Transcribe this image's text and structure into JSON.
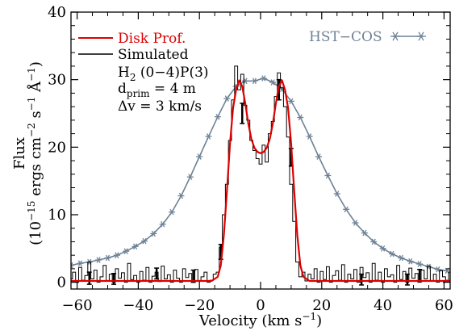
{
  "chart_data": {
    "type": "line",
    "title": "",
    "xlabel": {
      "main": "Velocity (km s",
      "sup": "−1",
      "close": ")"
    },
    "ylabel": {
      "line1": "Flux",
      "line2_parts": [
        {
          "t": "(10"
        },
        {
          "t": "−15",
          "sup": true
        },
        {
          "t": " ergs cm"
        },
        {
          "t": "−2",
          "sup": true
        },
        {
          "t": " s"
        },
        {
          "t": "−1",
          "sup": true
        },
        {
          "t": " Å"
        },
        {
          "t": "−1",
          "sup": true
        },
        {
          "t": ")"
        }
      ]
    },
    "xlim": [
      -62,
      62
    ],
    "ylim": [
      -1,
      40
    ],
    "xticks": [
      -60,
      -40,
      -20,
      0,
      20,
      40,
      60
    ],
    "yticks": [
      0,
      10,
      20,
      30,
      40
    ],
    "xtick_labels": [
      "−60",
      "−40",
      "−20",
      "0",
      "20",
      "40",
      "60"
    ],
    "ytick_labels": [
      "0",
      "10",
      "20",
      "30",
      "40"
    ],
    "legend": {
      "disk": "Disk Prof.",
      "sim": "Simulated",
      "hst": "HST−COS",
      "line3": {
        "a": "H",
        "sub": "2",
        "b": " (0−4)P(3)"
      },
      "line4": {
        "a": "d",
        "sub": "prim",
        "b": " = 4 m"
      },
      "line5": "Δv = 3 km/s"
    },
    "series": [
      {
        "name": "HST−COS",
        "color": "#6e8296",
        "marker": "asterisk",
        "x": [
          -62,
          -59,
          -56,
          -53,
          -50,
          -47,
          -44,
          -41,
          -38,
          -35,
          -32,
          -29,
          -26,
          -23,
          -20,
          -17,
          -14,
          -11,
          -8,
          -5,
          -2,
          1,
          4,
          7,
          10,
          13,
          16,
          19,
          22,
          25,
          28,
          31,
          34,
          37,
          40,
          43,
          46,
          49,
          52,
          55,
          58,
          61
        ],
        "y": [
          2.5,
          2.8,
          3.0,
          3.3,
          3.6,
          4.0,
          4.6,
          5.3,
          6.1,
          7.2,
          8.6,
          10.4,
          12.8,
          15.6,
          18.6,
          21.6,
          24.5,
          27.2,
          29.0,
          29.8,
          29.8,
          30.2,
          29.6,
          28.6,
          26.8,
          24.4,
          21.6,
          18.6,
          15.8,
          13.1,
          10.8,
          8.8,
          7.3,
          6.0,
          5.0,
          4.2,
          3.6,
          3.1,
          2.7,
          2.3,
          1.9,
          1.7
        ]
      },
      {
        "name": "Disk Prof.",
        "color": "#dd0000",
        "x": [
          -62,
          -16,
          -14,
          -13,
          -12,
          -11,
          -10,
          -9,
          -8,
          -7,
          -6,
          -5,
          -4,
          -3,
          -2,
          -1,
          0,
          1,
          2,
          3,
          4,
          5,
          6,
          7,
          8,
          9,
          10,
          11,
          12,
          13,
          14,
          16,
          62
        ],
        "y": [
          0.2,
          0.2,
          0.8,
          2.5,
          7.0,
          13.5,
          20.5,
          25.8,
          28.5,
          29.9,
          29.0,
          26.5,
          23.5,
          21.2,
          19.9,
          19.3,
          19.1,
          19.3,
          19.9,
          21.2,
          23.5,
          26.5,
          29.0,
          29.9,
          28.5,
          25.8,
          20.5,
          13.5,
          7.0,
          2.5,
          0.8,
          0.2,
          0.2
        ]
      },
      {
        "name": "Simulated",
        "color": "#000000",
        "x": [
          -62,
          -61,
          -60,
          -59,
          -58,
          -57,
          -56,
          -55,
          -54,
          -53,
          -52,
          -51,
          -50,
          -49,
          -48,
          -47,
          -46,
          -45,
          -44,
          -43,
          -42,
          -41,
          -40,
          -39,
          -38,
          -37,
          -36,
          -35,
          -34,
          -33,
          -32,
          -31,
          -30,
          -29,
          -28,
          -27,
          -26,
          -25,
          -24,
          -23,
          -22,
          -21,
          -20,
          -19,
          -18,
          -17,
          -16,
          -15,
          -14,
          -13,
          -12,
          -11,
          -10,
          -9,
          -8,
          -7,
          -6,
          -5,
          -4,
          -3,
          -2,
          -1,
          0,
          1,
          2,
          3,
          4,
          5,
          6,
          7,
          8,
          9,
          10,
          11,
          12,
          13,
          14,
          15,
          16,
          17,
          18,
          19,
          20,
          21,
          22,
          23,
          24,
          25,
          26,
          27,
          28,
          29,
          30,
          31,
          32,
          33,
          34,
          35,
          36,
          37,
          38,
          39,
          40,
          41,
          42,
          43,
          44,
          45,
          46,
          47,
          48,
          49,
          50,
          51,
          52,
          53,
          54,
          55,
          56,
          57,
          58,
          59,
          60,
          61,
          62
        ],
        "y": [
          0.5,
          1.5,
          0.0,
          2.2,
          0.3,
          1.0,
          3.0,
          0.5,
          1.8,
          0.0,
          0.8,
          2.5,
          0.2,
          1.2,
          0.0,
          2.0,
          0.6,
          1.4,
          0.0,
          2.8,
          0.4,
          1.0,
          0.0,
          1.6,
          0.3,
          2.2,
          0.0,
          0.9,
          1.5,
          0.1,
          2.4,
          0.5,
          1.1,
          0.0,
          1.8,
          0.6,
          0.0,
          2.0,
          0.7,
          1.3,
          0.0,
          1.9,
          0.2,
          0.8,
          1.5,
          0.0,
          0.3,
          1.2,
          1.5,
          5.2,
          10.0,
          14.5,
          21.0,
          27.0,
          32.0,
          28.5,
          30.8,
          26.2,
          24.0,
          21.0,
          19.5,
          18.3,
          17.5,
          20.3,
          17.8,
          22.0,
          23.8,
          27.5,
          31.0,
          28.8,
          26.0,
          21.5,
          14.5,
          9.0,
          3.0,
          0.8,
          1.5,
          0.2,
          1.2,
          0.5,
          2.0,
          0.0,
          1.6,
          0.4,
          2.3,
          0.0,
          1.0,
          1.7,
          0.3,
          2.6,
          0.0,
          1.2,
          0.5,
          1.9,
          0.0,
          2.2,
          0.7,
          1.4,
          0.0,
          2.8,
          0.3,
          1.5,
          0.0,
          2.0,
          0.8,
          1.1,
          0.0,
          2.5,
          0.4,
          1.6,
          0.0,
          2.1,
          0.6,
          1.3,
          0.0,
          1.8,
          0.5,
          2.4,
          0.2,
          1.2,
          0.0,
          1.7,
          0.8,
          0.3,
          1.5
        ]
      }
    ],
    "error_bars": [
      {
        "x": -56,
        "y": 0.6,
        "e": 0.9
      },
      {
        "x": -48,
        "y": 0.5,
        "e": 0.8
      },
      {
        "x": -34,
        "y": 1.3,
        "e": 0.8
      },
      {
        "x": -22,
        "y": 0.9,
        "e": 0.9
      },
      {
        "x": -13,
        "y": 4.5,
        "e": 1.1
      },
      {
        "x": -6,
        "y": 25.0,
        "e": 1.5
      },
      {
        "x": 6,
        "y": 28.5,
        "e": 1.5
      },
      {
        "x": 10,
        "y": 18.5,
        "e": 1.3
      },
      {
        "x": 33,
        "y": 0.4,
        "e": 0.8
      },
      {
        "x": 48,
        "y": 0.4,
        "e": 0.8
      },
      {
        "x": 52,
        "y": 1.0,
        "e": 0.9
      }
    ]
  }
}
